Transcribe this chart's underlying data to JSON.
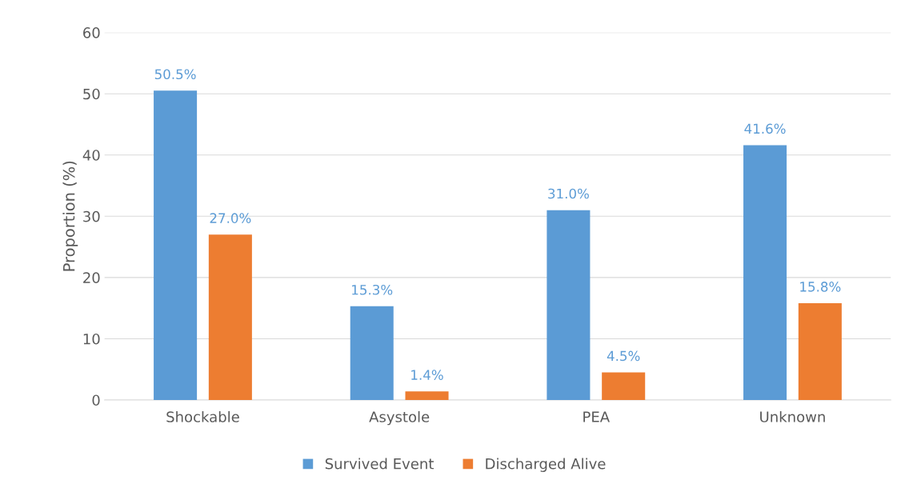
{
  "chart_data": {
    "type": "bar",
    "ylabel": "Proportion (%)",
    "categories": [
      "Shockable",
      "Asystole",
      "PEA",
      "Unknown"
    ],
    "series": [
      {
        "name": "Survived Event",
        "color": "#5b9bd5",
        "values": [
          50.5,
          15.3,
          31.0,
          41.6
        ],
        "value_labels": [
          "50.5%",
          "15.3%",
          "31.0%",
          "41.6%"
        ]
      },
      {
        "name": "Discharged Alive",
        "color": "#ed7d31",
        "values": [
          27.0,
          1.4,
          4.5,
          15.8
        ],
        "value_labels": [
          "27.0%",
          "1.4%",
          "4.5%",
          "15.8%"
        ]
      }
    ],
    "ylim": [
      0,
      60
    ],
    "yticks": [
      0,
      10,
      20,
      30,
      40,
      50,
      60
    ],
    "grid": "y",
    "legend": "bottom"
  }
}
